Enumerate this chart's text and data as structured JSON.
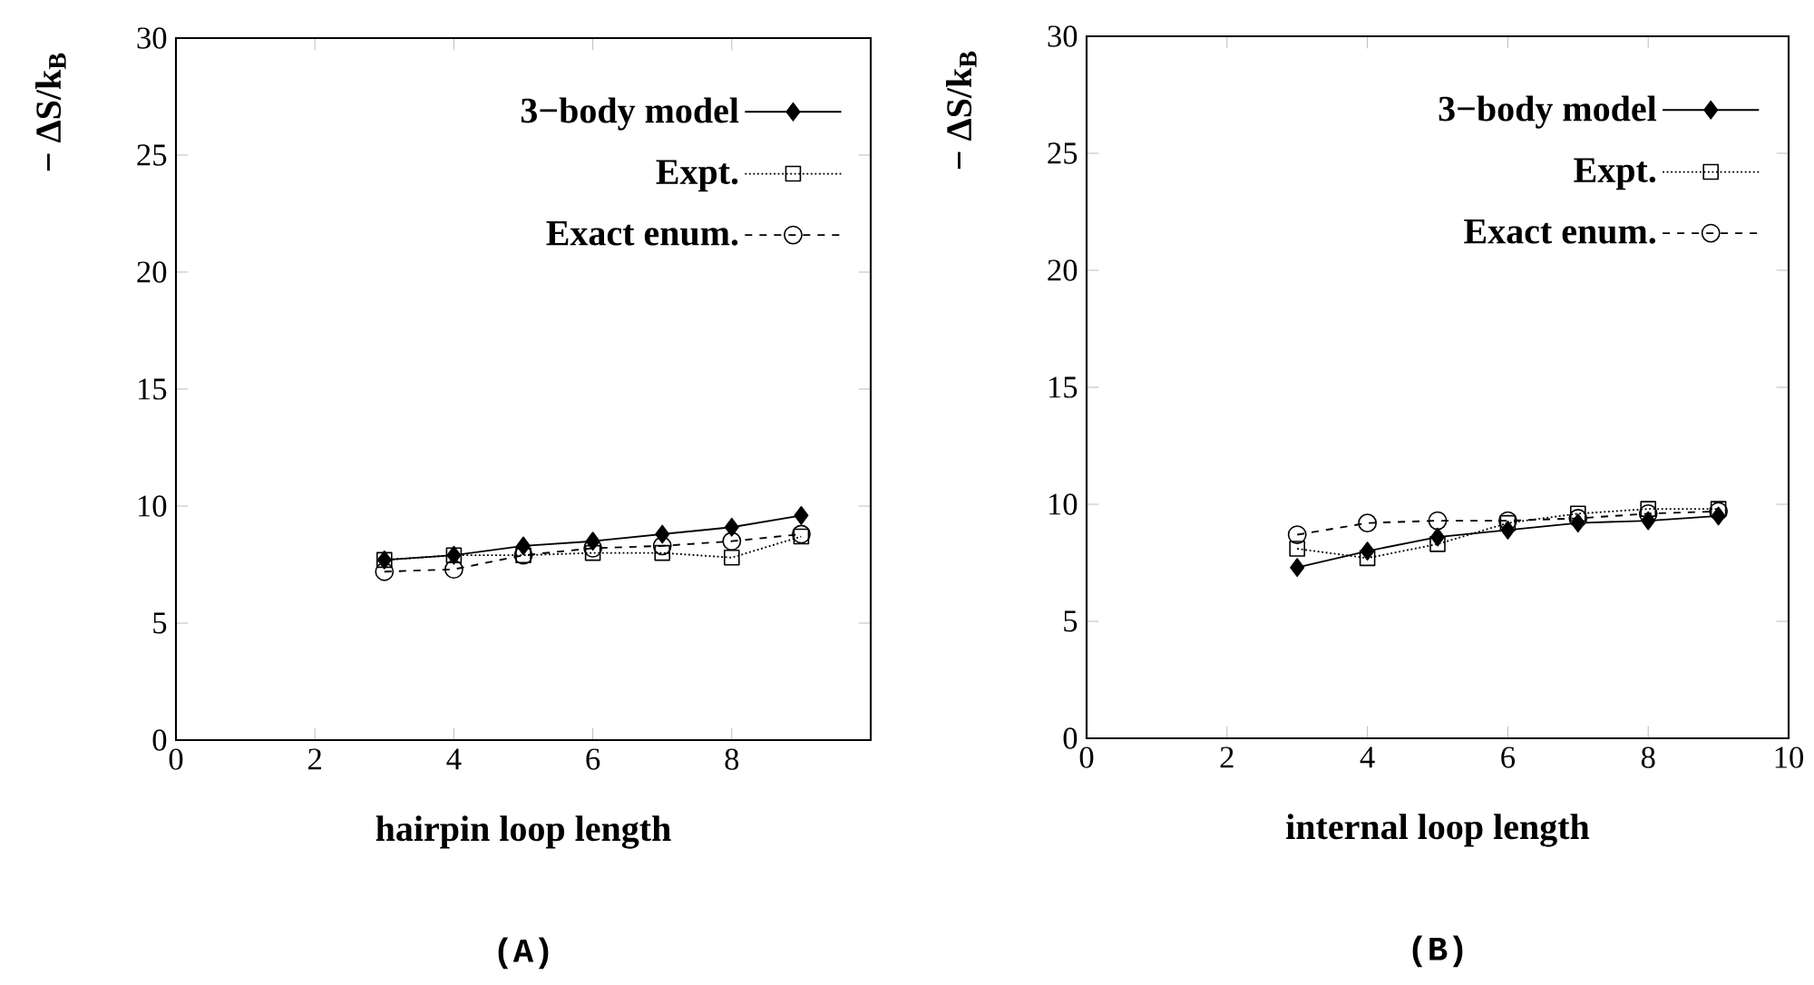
{
  "chart_data": [
    {
      "type": "line",
      "xlabel": "hairpin loop length",
      "ylabel": "− ΔS/k$_{B}$",
      "x": [
        3,
        4,
        5,
        6,
        7,
        8,
        9
      ],
      "xlim": [
        0,
        10
      ],
      "ylim": [
        0,
        30
      ],
      "xticks": [
        0,
        2,
        4,
        6,
        8
      ],
      "yticks": [
        0,
        5,
        10,
        15,
        20,
        25,
        30
      ],
      "legend": "top right",
      "annotations": [
        "(A)"
      ],
      "series": [
        {
          "name": "3−body model",
          "color": "#000000",
          "marker": "diamond",
          "line_style": "solid",
          "values": [
            7.7,
            7.9,
            8.3,
            8.5,
            8.8,
            9.1,
            9.6
          ]
        },
        {
          "name": "Expt.",
          "color": "#000000",
          "marker": "square",
          "line_style": "dotted",
          "values": [
            7.7,
            7.9,
            7.9,
            8.0,
            8.0,
            7.8,
            8.7
          ]
        },
        {
          "name": "Exact enum.",
          "color": "#000000",
          "marker": "circle",
          "line_style": "dashed",
          "values": [
            7.2,
            7.3,
            7.9,
            8.2,
            8.3,
            8.5,
            8.8
          ]
        }
      ]
    },
    {
      "type": "line",
      "xlabel": "internal loop length",
      "ylabel": "− ΔS/k$_{B}$",
      "x": [
        3,
        4,
        5,
        6,
        7,
        8,
        9
      ],
      "xlim": [
        0,
        10
      ],
      "ylim": [
        0,
        30
      ],
      "xticks": [
        0,
        2,
        4,
        6,
        8,
        10
      ],
      "yticks": [
        0,
        5,
        10,
        15,
        20,
        25,
        30
      ],
      "legend": "top right",
      "annotations": [
        "(B)"
      ],
      "series": [
        {
          "name": "3−body model",
          "color": "#000000",
          "marker": "diamond",
          "line_style": "solid",
          "values": [
            7.3,
            8.0,
            8.6,
            8.9,
            9.2,
            9.3,
            9.5
          ]
        },
        {
          "name": "Expt.",
          "color": "#000000",
          "marker": "square",
          "line_style": "dotted",
          "values": [
            8.1,
            7.7,
            8.3,
            9.2,
            9.6,
            9.8,
            9.8
          ]
        },
        {
          "name": "Exact enum.",
          "color": "#000000",
          "marker": "circle",
          "line_style": "dashed",
          "values": [
            8.7,
            9.2,
            9.3,
            9.3,
            9.4,
            9.6,
            9.7
          ]
        }
      ]
    }
  ]
}
